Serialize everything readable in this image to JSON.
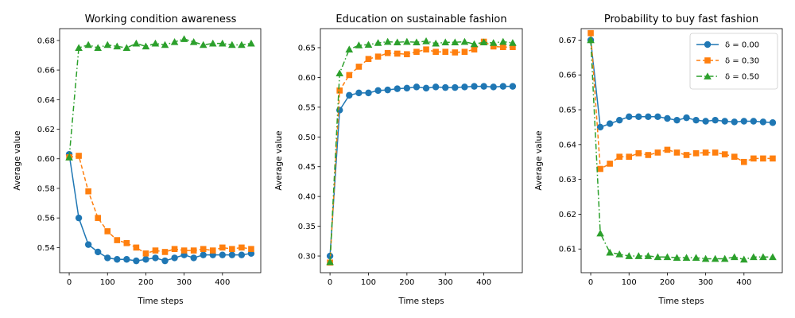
{
  "chart_data": [
    {
      "type": "line",
      "title": "Working condition awareness",
      "xlabel": "Time steps",
      "ylabel": "Average value",
      "xlim": [
        -25,
        500
      ],
      "ylim": [
        0.523,
        0.688
      ],
      "xticks": [
        0,
        100,
        200,
        300,
        400
      ],
      "yticks": [
        0.54,
        0.56,
        0.58,
        0.6,
        0.62,
        0.64,
        0.66,
        0.68
      ],
      "ytick_labels": [
        "0.54",
        "0.56",
        "0.58",
        "0.60",
        "0.62",
        "0.64",
        "0.66",
        "0.68"
      ],
      "x": [
        0,
        25,
        50,
        75,
        100,
        125,
        150,
        175,
        200,
        225,
        250,
        275,
        300,
        325,
        350,
        375,
        400,
        425,
        450,
        475
      ],
      "series": [
        {
          "name": "δ = 0.00",
          "color": "#1f77b4",
          "marker": "circle",
          "dash": "solid",
          "values": [
            0.603,
            0.56,
            0.542,
            0.537,
            0.533,
            0.532,
            0.532,
            0.531,
            0.532,
            0.533,
            0.531,
            0.533,
            0.535,
            0.533,
            0.535,
            0.535,
            0.535,
            0.535,
            0.535,
            0.536
          ]
        },
        {
          "name": "δ = 0.30",
          "color": "#ff7f0e",
          "marker": "square",
          "dash": "dashed",
          "values": [
            0.601,
            0.602,
            0.578,
            0.56,
            0.551,
            0.545,
            0.543,
            0.54,
            0.536,
            0.538,
            0.537,
            0.539,
            0.538,
            0.538,
            0.539,
            0.538,
            0.54,
            0.539,
            0.54,
            0.539
          ]
        },
        {
          "name": "δ = 0.50",
          "color": "#2ca02c",
          "marker": "triangle",
          "dash": "dashdot",
          "values": [
            0.601,
            0.675,
            0.677,
            0.675,
            0.677,
            0.676,
            0.675,
            0.678,
            0.676,
            0.678,
            0.677,
            0.679,
            0.681,
            0.679,
            0.677,
            0.678,
            0.678,
            0.677,
            0.677,
            0.678
          ]
        }
      ]
    },
    {
      "type": "line",
      "title": "Education on sustainable fashion",
      "xlabel": "Time steps",
      "ylabel": "Average value",
      "xlim": [
        -25,
        500
      ],
      "ylim": [
        0.272,
        0.682
      ],
      "xticks": [
        0,
        100,
        200,
        300,
        400
      ],
      "yticks": [
        0.3,
        0.35,
        0.4,
        0.45,
        0.5,
        0.55,
        0.6,
        0.65
      ],
      "ytick_labels": [
        "0.30",
        "0.35",
        "0.40",
        "0.45",
        "0.50",
        "0.55",
        "0.60",
        "0.65"
      ],
      "x": [
        0,
        25,
        50,
        75,
        100,
        125,
        150,
        175,
        200,
        225,
        250,
        275,
        300,
        325,
        350,
        375,
        400,
        425,
        450,
        475
      ],
      "series": [
        {
          "name": "δ = 0.00",
          "color": "#1f77b4",
          "marker": "circle",
          "dash": "solid",
          "values": [
            0.3,
            0.545,
            0.57,
            0.574,
            0.574,
            0.578,
            0.579,
            0.581,
            0.582,
            0.584,
            0.582,
            0.584,
            0.583,
            0.583,
            0.584,
            0.585,
            0.585,
            0.584,
            0.585,
            0.585
          ]
        },
        {
          "name": "δ = 0.30",
          "color": "#ff7f0e",
          "marker": "square",
          "dash": "dashed",
          "values": [
            0.289,
            0.578,
            0.604,
            0.618,
            0.631,
            0.635,
            0.641,
            0.64,
            0.639,
            0.643,
            0.647,
            0.643,
            0.643,
            0.642,
            0.643,
            0.647,
            0.66,
            0.652,
            0.651,
            0.651
          ]
        },
        {
          "name": "δ = 0.50",
          "color": "#2ca02c",
          "marker": "triangle",
          "dash": "dashdot",
          "values": [
            0.29,
            0.607,
            0.647,
            0.654,
            0.655,
            0.658,
            0.66,
            0.659,
            0.66,
            0.659,
            0.661,
            0.657,
            0.659,
            0.659,
            0.66,
            0.656,
            0.659,
            0.658,
            0.66,
            0.658
          ]
        }
      ]
    },
    {
      "type": "line",
      "title": "Probability to buy fast fashion",
      "xlabel": "Time steps",
      "ylabel": "Average value",
      "xlim": [
        -25,
        500
      ],
      "ylim": [
        0.6032,
        0.6733
      ],
      "xticks": [
        0,
        100,
        200,
        300,
        400
      ],
      "yticks": [
        0.61,
        0.62,
        0.63,
        0.64,
        0.65,
        0.66,
        0.67
      ],
      "ytick_labels": [
        "0.61",
        "0.62",
        "0.63",
        "0.64",
        "0.65",
        "0.66",
        "0.67"
      ],
      "legend_position": "upper-right",
      "x": [
        0,
        25,
        50,
        75,
        100,
        125,
        150,
        175,
        200,
        225,
        250,
        275,
        300,
        325,
        350,
        375,
        400,
        425,
        450,
        475
      ],
      "series": [
        {
          "name": "δ = 0.00",
          "color": "#1f77b4",
          "marker": "circle",
          "dash": "solid",
          "values": [
            0.67,
            0.645,
            0.646,
            0.647,
            0.648,
            0.648,
            0.648,
            0.648,
            0.6475,
            0.647,
            0.6477,
            0.647,
            0.6467,
            0.647,
            0.6467,
            0.6465,
            0.6467,
            0.6467,
            0.6465,
            0.6463
          ]
        },
        {
          "name": "δ = 0.30",
          "color": "#ff7f0e",
          "marker": "square",
          "dash": "dashed",
          "values": [
            0.672,
            0.633,
            0.6345,
            0.6365,
            0.6365,
            0.6375,
            0.637,
            0.6377,
            0.6385,
            0.6377,
            0.637,
            0.6375,
            0.6377,
            0.6377,
            0.6372,
            0.6365,
            0.635,
            0.636,
            0.636,
            0.636
          ]
        },
        {
          "name": "δ = 0.50",
          "color": "#2ca02c",
          "marker": "triangle",
          "dash": "dashdot",
          "values": [
            0.67,
            0.6145,
            0.609,
            0.6085,
            0.608,
            0.608,
            0.608,
            0.6077,
            0.6077,
            0.6075,
            0.6075,
            0.6075,
            0.6072,
            0.6072,
            0.6072,
            0.6077,
            0.607,
            0.6077,
            0.6077,
            0.6077
          ]
        }
      ]
    }
  ]
}
